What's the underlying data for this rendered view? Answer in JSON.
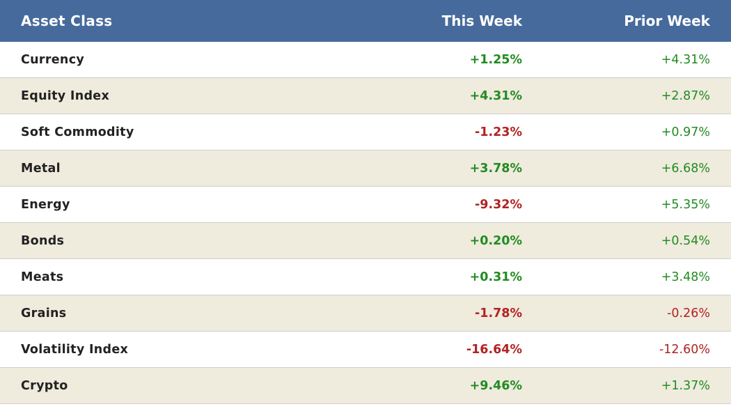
{
  "table": {
    "header": [
      "Asset Class",
      "This Week",
      "Prior Week"
    ],
    "rows": [
      [
        "Currency",
        "+1.25%",
        "+4.31%"
      ],
      [
        "Equity Index",
        "+4.31%",
        "+2.87%"
      ],
      [
        "Soft Commodity",
        "-1.23%",
        "+0.97%"
      ],
      [
        "Metal",
        "+3.78%",
        "+6.68%"
      ],
      [
        "Energy",
        "-9.32%",
        "+5.35%"
      ],
      [
        "Bonds",
        "+0.20%",
        "+0.54%"
      ],
      [
        "Meats",
        "+0.31%",
        "+3.48%"
      ],
      [
        "Grains",
        "-1.78%",
        "-0.26%"
      ],
      [
        "Volatility Index",
        "-16.64%",
        "-12.60%"
      ],
      [
        "Crypto",
        "+9.46%",
        "+1.37%"
      ]
    ]
  }
}
